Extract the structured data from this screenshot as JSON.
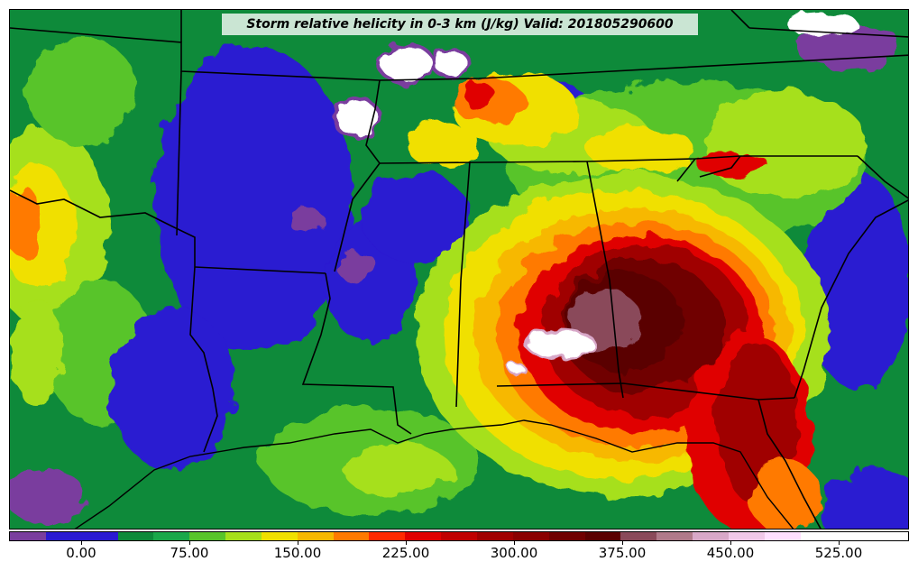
{
  "title": "Storm relative helicity in 0-3 km (J/kg) Valid: 201805290600",
  "colorbar": {
    "colors": [
      "#7a3e9e",
      "#2a1ad1",
      "#2a1ad1",
      "#0e8a3a",
      "#1aa84a",
      "#58c42a",
      "#a6e01a",
      "#f0e000",
      "#f7b800",
      "#ff7a00",
      "#ff2a00",
      "#e00000",
      "#c00000",
      "#a00000",
      "#8a0000",
      "#700000",
      "#5a0000",
      "#8a4a5a",
      "#b07a8a",
      "#d8a8c8",
      "#f0c8e8",
      "#ffe0ff",
      "#ffffff",
      "#ffffff",
      "#ffffff"
    ],
    "labels": [
      "0.00",
      "75.00",
      "150.00",
      "225.00",
      "300.00",
      "375.00",
      "450.00",
      "525.00"
    ]
  },
  "map": {
    "background": "#2a8a3a",
    "palette": {
      "purple": "#7a3e9e",
      "blue": "#2a1ad1",
      "green": "#0e8a3a",
      "light_green": "#58c42a",
      "yellow_green": "#a6e01a",
      "yellow": "#f0e000",
      "orange": "#ff7a00",
      "red": "#e00000",
      "dark_red": "#a00000",
      "maroon": "#5a0000",
      "pink": "#d8a8c8",
      "white": "#ffffff"
    }
  }
}
